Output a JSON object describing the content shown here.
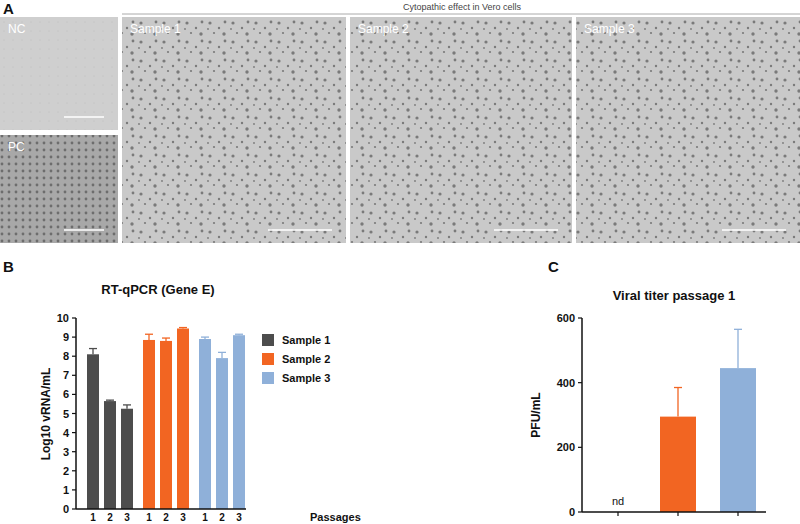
{
  "figure": {
    "panel_labels": [
      "A",
      "B",
      "C"
    ],
    "image_title": "Cytopathic effect in Vero cells",
    "image_labels": [
      "NC",
      "PC",
      "Sample 1",
      "Sample 2",
      "Sample 3"
    ]
  },
  "chart_data": [
    {
      "type": "bar",
      "title": "RT-qPCR (Gene E)",
      "y_label": "Log10 vRNA/mL",
      "x_label": "Passages",
      "categories": [
        "1",
        "2",
        "3"
      ],
      "series": [
        {
          "name": "Sample 1",
          "color": "#4d4d4d",
          "values": [
            8.1,
            5.65,
            5.25
          ],
          "errors": [
            0.3,
            0.05,
            0.2
          ]
        },
        {
          "name": "Sample 2",
          "color": "#f26522",
          "values": [
            8.85,
            8.8,
            9.45
          ],
          "errors": [
            0.3,
            0.15,
            0.05
          ]
        },
        {
          "name": "Sample 3",
          "color": "#8fb0d9",
          "values": [
            8.9,
            7.9,
            9.1
          ],
          "errors": [
            0.1,
            0.3,
            0.05
          ]
        }
      ],
      "ylim": [
        0,
        10
      ],
      "yticks": [
        0,
        1,
        2,
        3,
        4,
        5,
        6,
        7,
        8,
        9,
        10
      ],
      "legend": "right"
    },
    {
      "type": "bar",
      "title": "Viral titer passage 1",
      "y_label": "PFU/mL",
      "categories": [
        null,
        null,
        null
      ],
      "values": [
        null,
        295,
        445
      ],
      "errors": [
        null,
        90,
        120
      ],
      "colors": [
        "#4d4d4d",
        "#f26522",
        "#8fb0d9"
      ],
      "ylim": [
        0,
        600
      ],
      "yticks": [
        0,
        200,
        400,
        600
      ],
      "annotations": [
        {
          "text": "nd",
          "index": 0
        }
      ],
      "tick_labels": "y"
    }
  ]
}
